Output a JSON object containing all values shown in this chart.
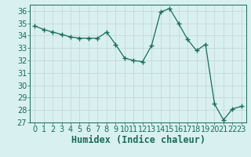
{
  "x": [
    0,
    1,
    2,
    3,
    4,
    5,
    6,
    7,
    8,
    9,
    10,
    11,
    12,
    13,
    14,
    15,
    16,
    17,
    18,
    19,
    20,
    21,
    22,
    23
  ],
  "y": [
    34.8,
    34.5,
    34.3,
    34.1,
    33.9,
    33.8,
    33.8,
    33.8,
    34.3,
    33.3,
    32.2,
    32.0,
    31.9,
    33.2,
    35.9,
    36.2,
    35.0,
    33.7,
    32.8,
    33.3,
    28.5,
    27.2,
    28.1,
    28.3
  ],
  "xlabel": "Humidex (Indice chaleur)",
  "ylim": [
    27,
    36.5
  ],
  "yticks": [
    27,
    28,
    29,
    30,
    31,
    32,
    33,
    34,
    35,
    36
  ],
  "xticks": [
    0,
    1,
    2,
    3,
    4,
    5,
    6,
    7,
    8,
    9,
    10,
    11,
    12,
    13,
    14,
    15,
    16,
    17,
    18,
    19,
    20,
    21,
    22,
    23
  ],
  "line_color": "#1a6b5a",
  "marker_color": "#1a6b5a",
  "bg_color": "#d8f0f0",
  "grid_color": "#c8d8d8",
  "text_color": "#1a6b5a",
  "tick_fontsize": 7,
  "xlabel_fontsize": 8.5
}
